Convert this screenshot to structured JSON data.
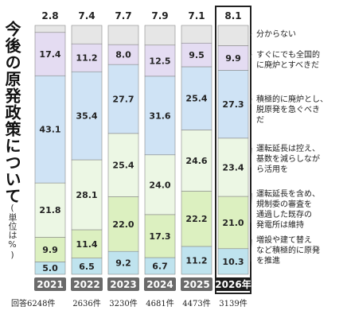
{
  "title": "今後の原発政策について",
  "unit": "(単位は%)",
  "chart_data": {
    "type": "bar",
    "stacked": true,
    "categories": [
      "2021",
      "2022",
      "2023",
      "2024",
      "2025",
      "2026年"
    ],
    "responses": [
      "回答6248件",
      "2636件",
      "3230件",
      "4681件",
      "4473件",
      "3139件"
    ],
    "highlight_category": "2026年",
    "ylim": [
      0,
      100
    ],
    "series": [
      {
        "name": "増設や建て替えなど積極的に原発を推進",
        "color": "#bfe3ee",
        "values": [
          5.0,
          6.5,
          9.2,
          6.7,
          11.2,
          10.3
        ]
      },
      {
        "name": "運転延長を含め、規制委の審査を通過した既存の発電所は維持",
        "color": "#dcf0c0",
        "values": [
          9.9,
          11.4,
          22.0,
          17.3,
          22.2,
          21.0
        ]
      },
      {
        "name": "運転延長は控え、基数を減らしながら活用を",
        "color": "#ecf7e4",
        "values": [
          21.8,
          28.1,
          25.4,
          24.0,
          24.6,
          23.4
        ]
      },
      {
        "name": "積極的に廃炉とし、脱原発を急ぐべきだ",
        "color": "#cfe3f5",
        "values": [
          43.1,
          35.4,
          27.7,
          31.6,
          25.4,
          27.3
        ]
      },
      {
        "name": "すぐにでも全国的に廃炉とすべきだ",
        "color": "#e4dcf2",
        "values": [
          17.4,
          11.2,
          8.0,
          12.5,
          9.5,
          9.9
        ]
      },
      {
        "name": "分からない",
        "color": "#e6e6e6",
        "values": [
          2.8,
          7.4,
          7.7,
          7.9,
          7.1,
          8.1
        ]
      }
    ],
    "legend_lines": [
      [
        "分からない"
      ],
      [
        "すぐにでも全国的",
        "に廃炉とすべきだ"
      ],
      [
        "積極的に廃炉とし、",
        "脱原発を急ぐべき",
        "だ"
      ],
      [
        "運転延長は控え、",
        "基数を減らしなが",
        "ら活用を"
      ],
      [
        "運転延長を含め、",
        "規制委の審査を",
        "通過した既存の",
        "発電所は維持"
      ],
      [
        "増設や建て替え",
        "など積極的に原発",
        "を推進"
      ]
    ]
  }
}
